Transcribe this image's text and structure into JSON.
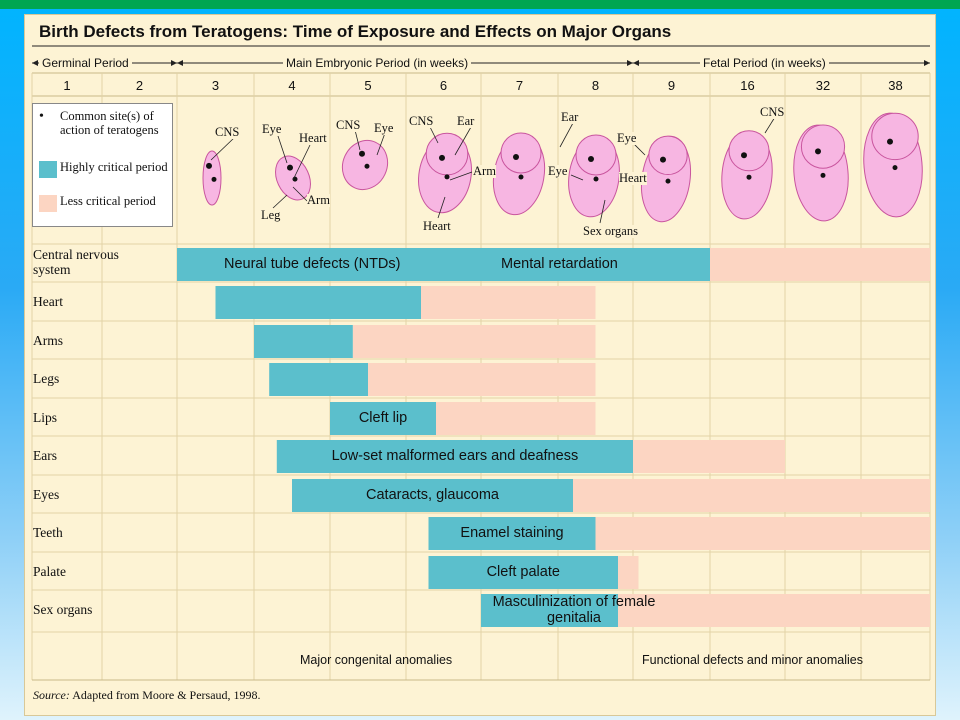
{
  "title": "Birth Defects from Teratogens: Time of Exposure and Effects on Major Organs",
  "periods": {
    "germinal": "Germinal Period",
    "embryonic": "Main Embryonic Period (in weeks)",
    "fetal": "Fetal Period (in weeks)"
  },
  "weeks": [
    "1",
    "2",
    "3",
    "4",
    "5",
    "6",
    "7",
    "8",
    "9",
    "16",
    "32",
    "38"
  ],
  "legend": {
    "site": "Common site(s) of action of teratogens",
    "highly": "Highly critical period",
    "less": "Less critical period"
  },
  "organ_labels": {
    "cns_3": "CNS",
    "eye_4": "Eye",
    "heart_4": "Heart",
    "leg_4": "Leg",
    "arm_4": "Arm",
    "cns_5": "CNS",
    "eye_5": "Eye",
    "cns_6": "CNS",
    "ear_6": "Ear",
    "arm_6": "Arm",
    "heart_6": "Heart",
    "ear_8": "Ear",
    "eye_8": "Eye",
    "eye_9": "Eye",
    "heart_9": "Heart",
    "sex_organs": "Sex organs",
    "cns_16": "CNS"
  },
  "colors": {
    "highly_critical": "#5bbfcc",
    "less_critical": "#fcd5c2",
    "background": "#fdf3d4",
    "embryo": "#f7b6e2",
    "embryo_outline": "#c9559e",
    "top_bar": "#00a651"
  },
  "rows": [
    {
      "organ": "Central nervous system",
      "label": "Neural tube defects (NTDs)",
      "label2": "Mental retardation",
      "highly": [
        3,
        16
      ],
      "less": [
        16,
        38
      ]
    },
    {
      "organ": "Heart",
      "label": "",
      "highly": [
        3.5,
        6.2
      ],
      "less": [
        6.2,
        8.5
      ]
    },
    {
      "organ": "Arms",
      "label": "",
      "highly": [
        4,
        5.3
      ],
      "less": [
        5.3,
        8.5
      ]
    },
    {
      "organ": "Legs",
      "label": "",
      "highly": [
        4.2,
        5.5
      ],
      "less": [
        5.5,
        8.5
      ]
    },
    {
      "organ": "Lips",
      "label": "Cleft lip",
      "highly": [
        5,
        6.4
      ],
      "less": [
        6.4,
        8.5
      ]
    },
    {
      "organ": "Ears",
      "label": "Low-set malformed ears and deafness",
      "highly": [
        4.3,
        9
      ],
      "less": [
        9,
        32
      ]
    },
    {
      "organ": "Eyes",
      "label": "Cataracts, glaucoma",
      "highly": [
        4.5,
        8.2
      ],
      "less": [
        8.2,
        38
      ]
    },
    {
      "organ": "Teeth",
      "label": "Enamel staining",
      "highly": [
        6.3,
        8.5
      ],
      "less": [
        8.5,
        38
      ]
    },
    {
      "organ": "Palate",
      "label": "Cleft palate",
      "highly": [
        6.3,
        8.8
      ],
      "less": [
        8.8,
        9.5
      ]
    },
    {
      "organ": "Sex organs",
      "label": "Masculinization of female genitalia",
      "highly": [
        7,
        8.8
      ],
      "less": [
        8.8,
        38
      ]
    }
  ],
  "footer": {
    "left": "Major congenital anomalies",
    "right": "Functional defects and minor anomalies"
  },
  "source": {
    "prefix": "Source:",
    "text": "Adapted from Moore & Persaud, 1998."
  }
}
